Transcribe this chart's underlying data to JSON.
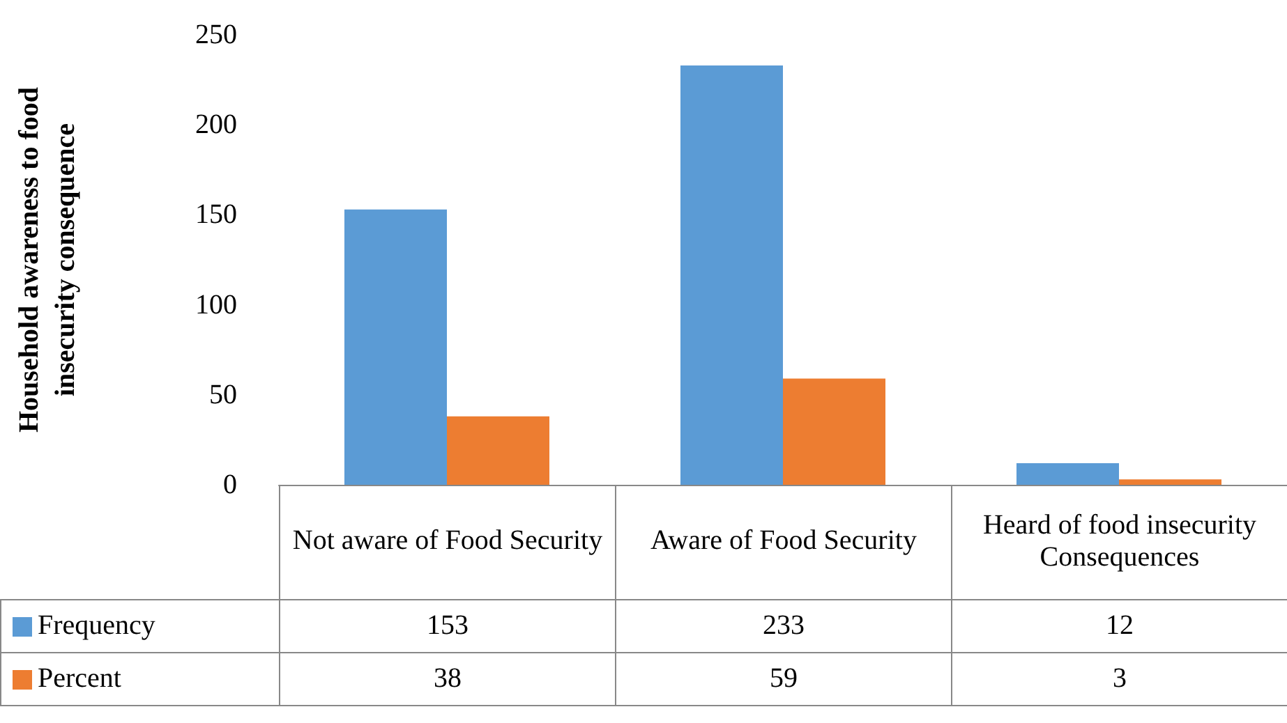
{
  "chart_data": {
    "type": "bar",
    "ylabel": "Household awareness to food insecurity consequence",
    "categories": [
      "Not aware of Food Security",
      "Aware of Food Security",
      "Heard of food insecurity Consequences"
    ],
    "series": [
      {
        "name": "Frequency",
        "color": "#5b9bd5",
        "values": [
          153,
          233,
          12
        ]
      },
      {
        "name": "Percent",
        "color": "#ed7d31",
        "values": [
          38,
          59,
          3
        ]
      }
    ],
    "ylim": [
      0,
      250
    ],
    "yticks": [
      0,
      50,
      100,
      150,
      200,
      250
    ],
    "grid": false,
    "legend": "bottom",
    "data_labels": true
  }
}
